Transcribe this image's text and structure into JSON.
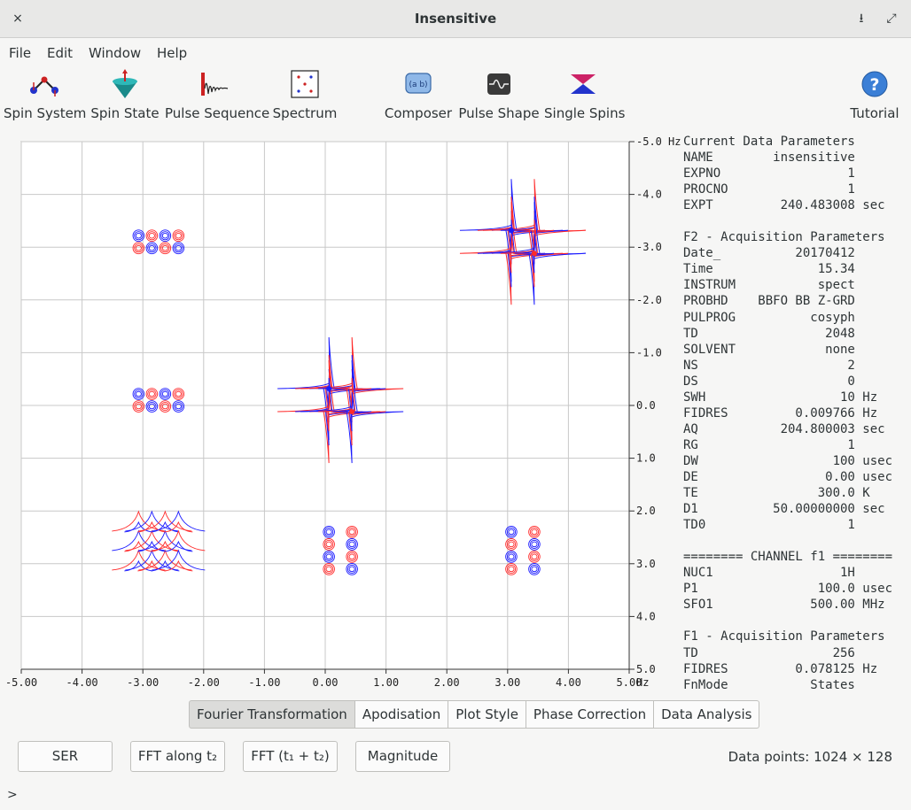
{
  "window": {
    "title": "Insensitive",
    "close_glyph": "×",
    "download_glyph": "⭳",
    "maximize_glyph": "⤢"
  },
  "menu": [
    "File",
    "Edit",
    "Window",
    "Help"
  ],
  "toolbar": [
    {
      "label": "Spin System",
      "icon": "spin-system-icon"
    },
    {
      "label": "Spin State",
      "icon": "spin-state-icon"
    },
    {
      "label": "Pulse Sequence",
      "icon": "pulse-sequence-icon"
    },
    {
      "label": "Spectrum",
      "icon": "spectrum-icon"
    },
    {
      "label": "Composer",
      "icon": "composer-icon"
    },
    {
      "label": "Pulse Shape",
      "icon": "pulse-shape-icon"
    },
    {
      "label": "Single Spins",
      "icon": "single-spins-icon"
    },
    {
      "label": "Tutorial",
      "icon": "help-icon"
    }
  ],
  "chart_data": {
    "type": "contour",
    "x_ticks": [
      "-5.00",
      "-4.00",
      "-3.00",
      "-2.00",
      "-1.00",
      "0.00",
      "1.00",
      "2.00",
      "3.00",
      "4.00",
      "5.00"
    ],
    "x_unit": "Hz",
    "y_ticks": [
      "-5.0",
      "-4.0",
      "-3.0",
      "-2.0",
      "-1.0",
      "0.0",
      "1.0",
      "2.0",
      "3.0",
      "4.0",
      "5.0"
    ],
    "y_unit": "Hz",
    "xlim": [
      -5,
      5
    ],
    "ylim": [
      -5,
      5
    ],
    "grid": true,
    "diagonal_peaks": [
      {
        "x": 0.25,
        "y": -0.1
      },
      {
        "x": 3.25,
        "y": -3.1
      }
    ],
    "cross_peaks": [
      {
        "x": -2.75,
        "y": -3.1
      },
      {
        "x": -2.75,
        "y": -0.1
      },
      {
        "x": 0.25,
        "y": 2.75
      },
      {
        "x": 3.25,
        "y": 2.75
      }
    ],
    "broad_peak": {
      "x": -2.75,
      "y": 2.75
    },
    "colors": {
      "positive": "#1a1aff",
      "negative": "#ff2a2a"
    }
  },
  "params": [
    "Current Data Parameters",
    "NAME        insensitive",
    "EXPNO                 1",
    "PROCNO                1",
    "EXPT         240.483008 sec",
    "",
    "F2 - Acquisition Parameters",
    "Date_          20170412",
    "Time              15.34",
    "INSTRUM           spect",
    "PROBHD    BBFO BB Z-GRD",
    "PULPROG          cosyph",
    "TD                 2048",
    "SOLVENT            none",
    "NS                    2",
    "DS                    0",
    "SWH                  10 Hz",
    "FIDRES         0.009766 Hz",
    "AQ           204.800003 sec",
    "RG                    1",
    "DW                  100 usec",
    "DE                 0.00 usec",
    "TE                300.0 K",
    "D1          50.00000000 sec",
    "TD0                   1",
    "",
    "======== CHANNEL f1 ========",
    "NUC1                 1H",
    "P1                100.0 usec",
    "SFO1             500.00 MHz",
    "",
    "F1 - Acquisition Parameters",
    "TD                  256",
    "FIDRES         0.078125 Hz",
    "FnMode           States"
  ],
  "tabs": [
    "Fourier Transformation",
    "Apodisation",
    "Plot Style",
    "Phase Correction",
    "Data Analysis"
  ],
  "active_tab": 0,
  "buttons": [
    "SER",
    "FFT along t₂",
    "FFT (t₁ + t₂)",
    "Magnitude"
  ],
  "status": "Data points: 1024 × 128",
  "prompt": ">"
}
